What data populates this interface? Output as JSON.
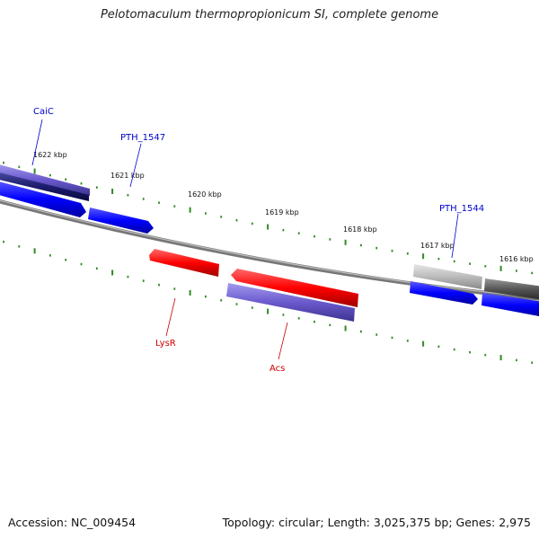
{
  "title": "Pelotomaculum thermopropionicum SI, complete genome",
  "footer": {
    "accession": "Accession: NC_009454",
    "summary": "Topology: circular; Length: 3,025,375 bp; Genes: 2,975"
  },
  "ruler_labels": [
    "1622 kbp",
    "1621 kbp",
    "1620 kbp",
    "1619 kbp",
    "1618 kbp",
    "1617 kbp",
    "1616 kbp"
  ],
  "gene_labels": {
    "caic": "CaiC",
    "pth1547": "PTH_1547",
    "pth1544": "PTH_1544",
    "lysr": "LysR",
    "acs": "Acs"
  },
  "colors": {
    "forward_cds": "#0000ff",
    "reverse_cds": "#ff0000",
    "feature_purple": "#6a5acd",
    "feature_navy": "#1c1c6e",
    "feature_gray": "#bbbbbb",
    "feature_dark_gray": "#555555",
    "backbone": "#888888",
    "ticks": "#2e8b22",
    "forward_label": "#0000cc",
    "reverse_label": "#cc0000"
  }
}
